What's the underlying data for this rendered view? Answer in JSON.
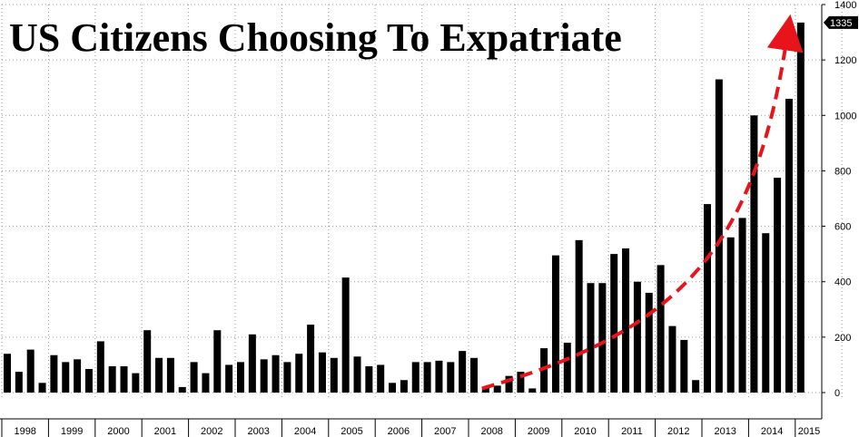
{
  "chart_data": {
    "type": "bar",
    "title": "US Citizens Choosing To Expatriate",
    "xlabel": "",
    "ylabel": "",
    "ylim": [
      0,
      1400
    ],
    "yticks": [
      0,
      200,
      400,
      600,
      800,
      1000,
      1200,
      1400
    ],
    "grid": true,
    "y_axis_position": "right",
    "last_value_label": "1335",
    "bar_color": "#000000",
    "trend_arrow_color": "#e8141c",
    "years": [
      "1998",
      "1999",
      "2000",
      "2001",
      "2002",
      "2003",
      "2004",
      "2005",
      "2006",
      "2007",
      "2008",
      "2009",
      "2010",
      "2011",
      "2012",
      "2013",
      "2014",
      "2015"
    ],
    "categories": [
      "1998 Q1",
      "1998 Q2",
      "1998 Q3",
      "1998 Q4",
      "1999 Q1",
      "1999 Q2",
      "1999 Q3",
      "1999 Q4",
      "2000 Q1",
      "2000 Q2",
      "2000 Q3",
      "2000 Q4",
      "2001 Q1",
      "2001 Q2",
      "2001 Q3",
      "2001 Q4",
      "2002 Q1",
      "2002 Q2",
      "2002 Q3",
      "2002 Q4",
      "2003 Q1",
      "2003 Q2",
      "2003 Q3",
      "2003 Q4",
      "2004 Q1",
      "2004 Q2",
      "2004 Q3",
      "2004 Q4",
      "2005 Q1",
      "2005 Q2",
      "2005 Q3",
      "2005 Q4",
      "2006 Q1",
      "2006 Q2",
      "2006 Q3",
      "2006 Q4",
      "2007 Q1",
      "2007 Q2",
      "2007 Q3",
      "2007 Q4",
      "2008 Q1",
      "2008 Q2",
      "2008 Q3",
      "2008 Q4",
      "2009 Q1",
      "2009 Q2",
      "2009 Q3",
      "2009 Q4",
      "2010 Q1",
      "2010 Q2",
      "2010 Q3",
      "2010 Q4",
      "2011 Q1",
      "2011 Q2",
      "2011 Q3",
      "2011 Q4",
      "2012 Q1",
      "2012 Q2",
      "2012 Q3",
      "2012 Q4",
      "2013 Q1",
      "2013 Q2",
      "2013 Q3",
      "2013 Q4",
      "2014 Q1",
      "2014 Q2",
      "2014 Q3",
      "2014 Q4",
      "2015 Q1"
    ],
    "values": [
      140,
      75,
      155,
      35,
      135,
      110,
      120,
      85,
      185,
      95,
      95,
      70,
      225,
      125,
      125,
      20,
      110,
      70,
      225,
      100,
      110,
      210,
      120,
      135,
      110,
      140,
      245,
      145,
      125,
      415,
      130,
      95,
      100,
      35,
      45,
      110,
      110,
      115,
      110,
      150,
      125,
      20,
      25,
      60,
      75,
      15,
      160,
      495,
      180,
      550,
      395,
      395,
      500,
      520,
      400,
      360,
      460,
      240,
      190,
      45,
      680,
      1130,
      560,
      630,
      1000,
      575,
      775,
      1060,
      1335
    ]
  }
}
